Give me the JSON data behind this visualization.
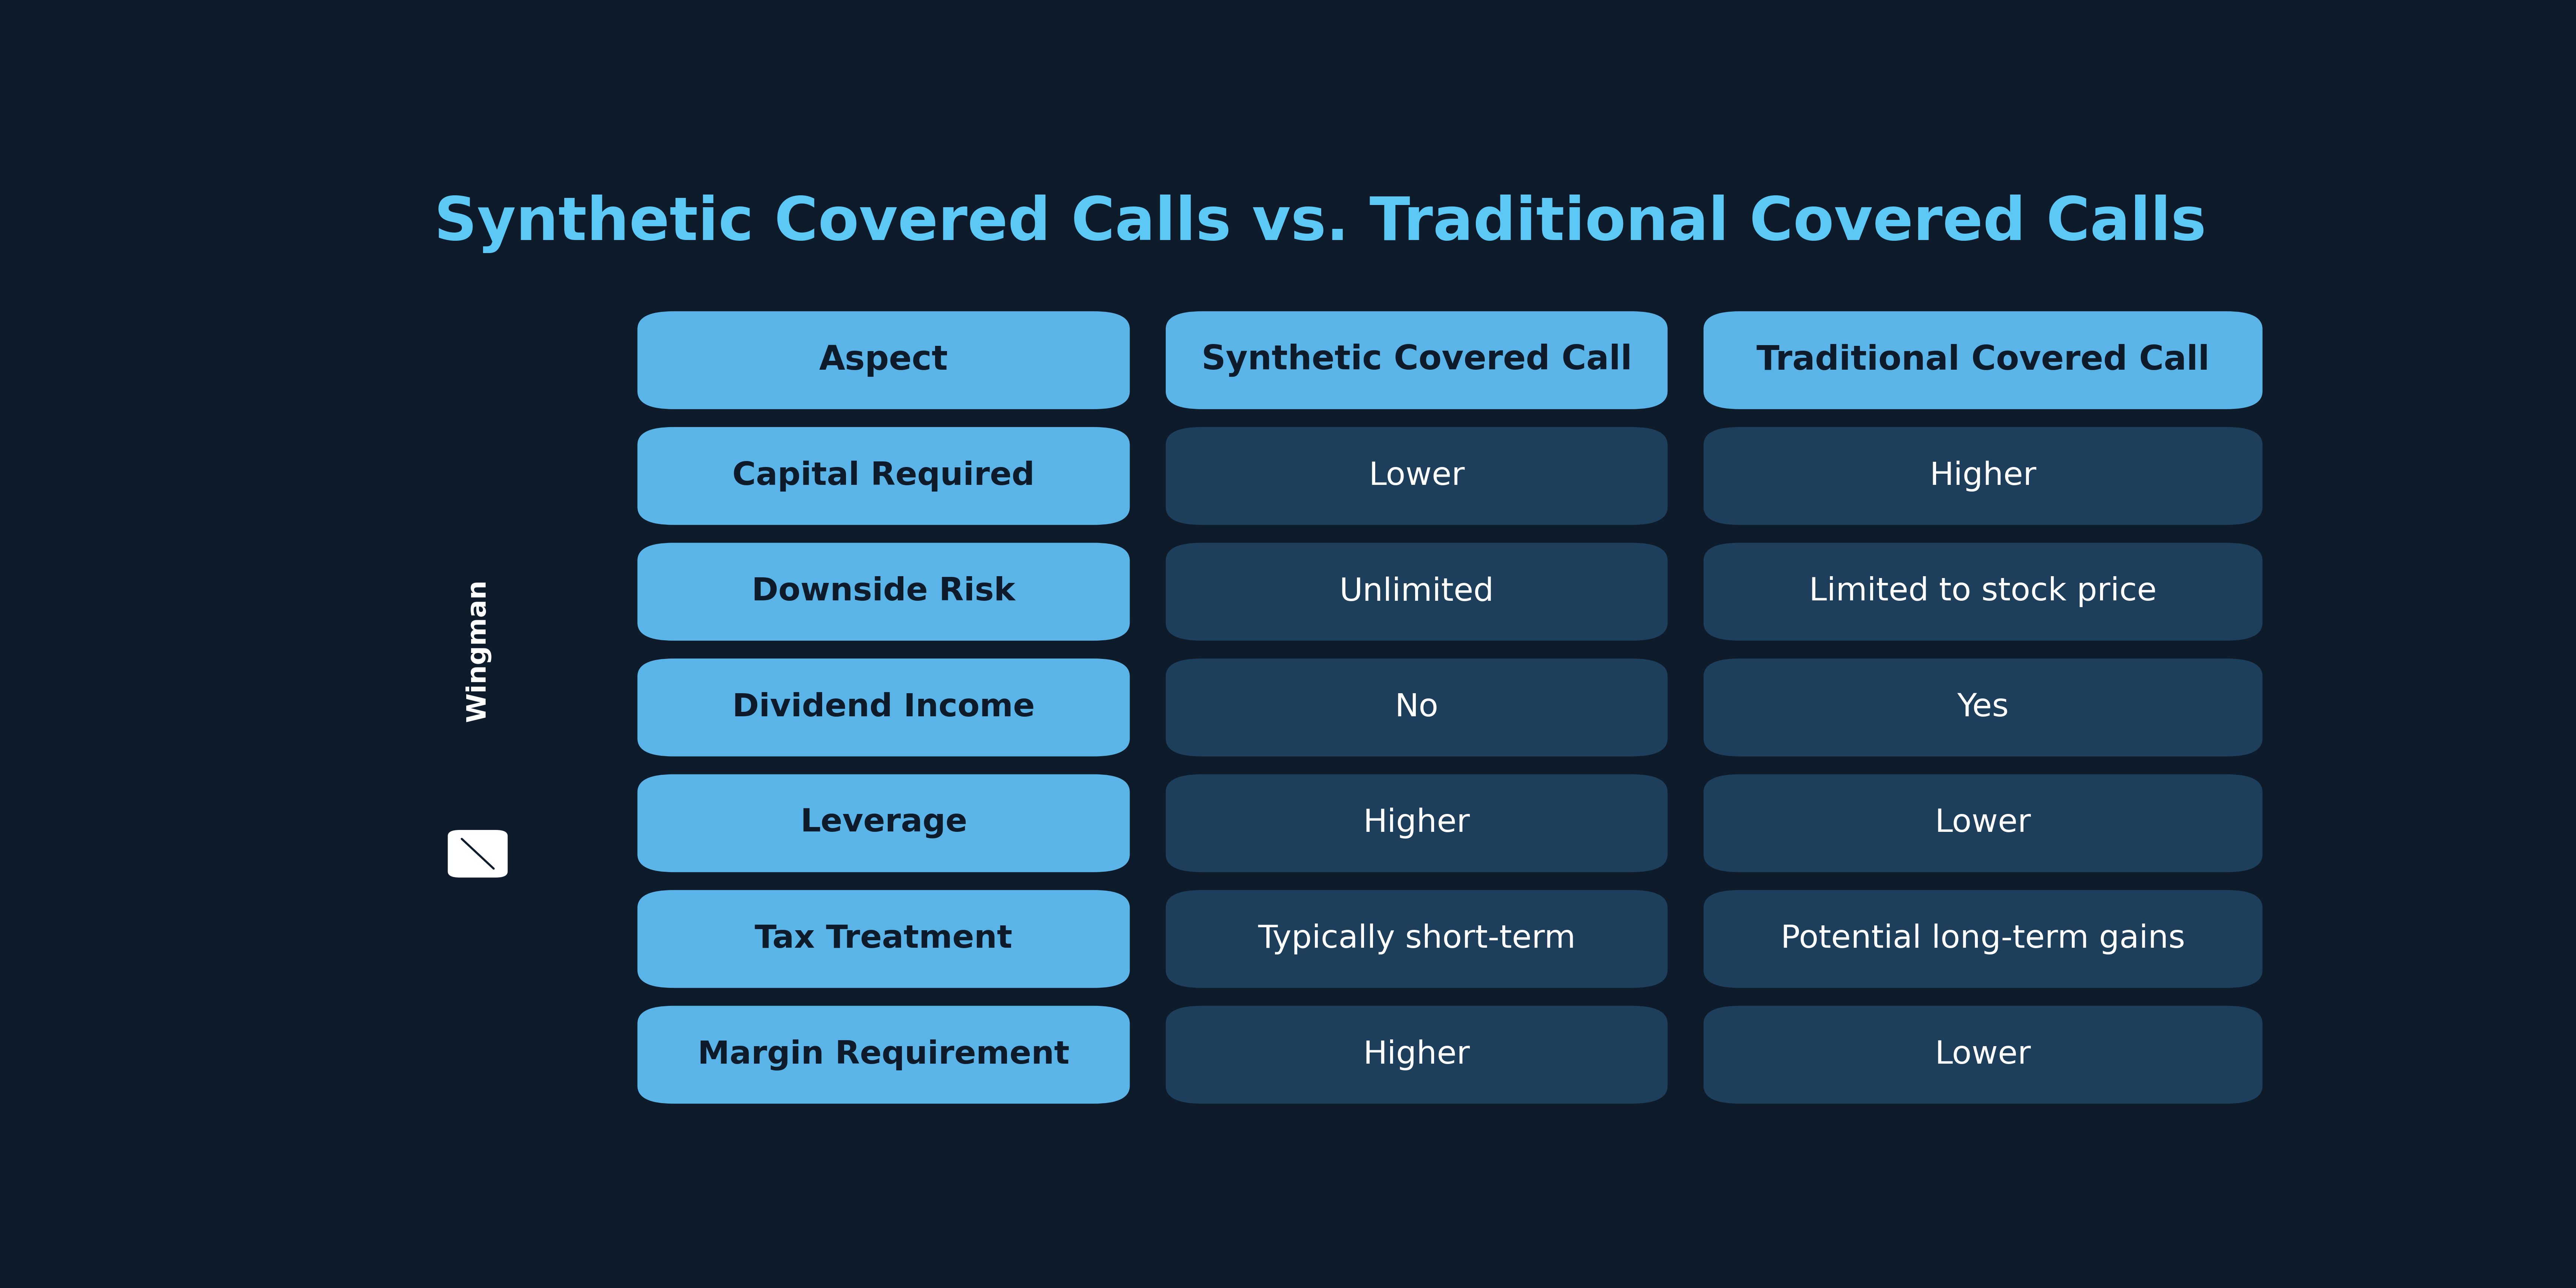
{
  "title": "Synthetic Covered Calls vs. Traditional Covered Calls",
  "title_color": "#5bc8f5",
  "background_color": "#0d1b2a",
  "header_row": [
    "Aspect",
    "Synthetic Covered Call",
    "Traditional Covered Call"
  ],
  "rows": [
    [
      "Capital Required",
      "Lower",
      "Higher"
    ],
    [
      "Downside Risk",
      "Unlimited",
      "Limited to stock price"
    ],
    [
      "Dividend Income",
      "No",
      "Yes"
    ],
    [
      "Leverage",
      "Higher",
      "Lower"
    ],
    [
      "Tax Treatment",
      "Typically short-term",
      "Potential long-term gains"
    ],
    [
      "Margin Requirement",
      "Higher",
      "Lower"
    ]
  ],
  "col0_color": "#5ab4e8",
  "col1_color": "#1e3f5c",
  "col2_color": "#1e3f5c",
  "header_col0_color": "#5ab4e8",
  "header_col1_color": "#5ab4e8",
  "header_col2_color": "#5ab4e8",
  "text_color_col0": "#0d1b2a",
  "text_color_col1": "#ffffff",
  "text_color_col2": "#ffffff",
  "header_text_color": "#0d1b2a",
  "wingman_text_color": "#ffffff",
  "title_fontsize": 115,
  "cell_fontsize": 62,
  "header_fontsize": 65
}
